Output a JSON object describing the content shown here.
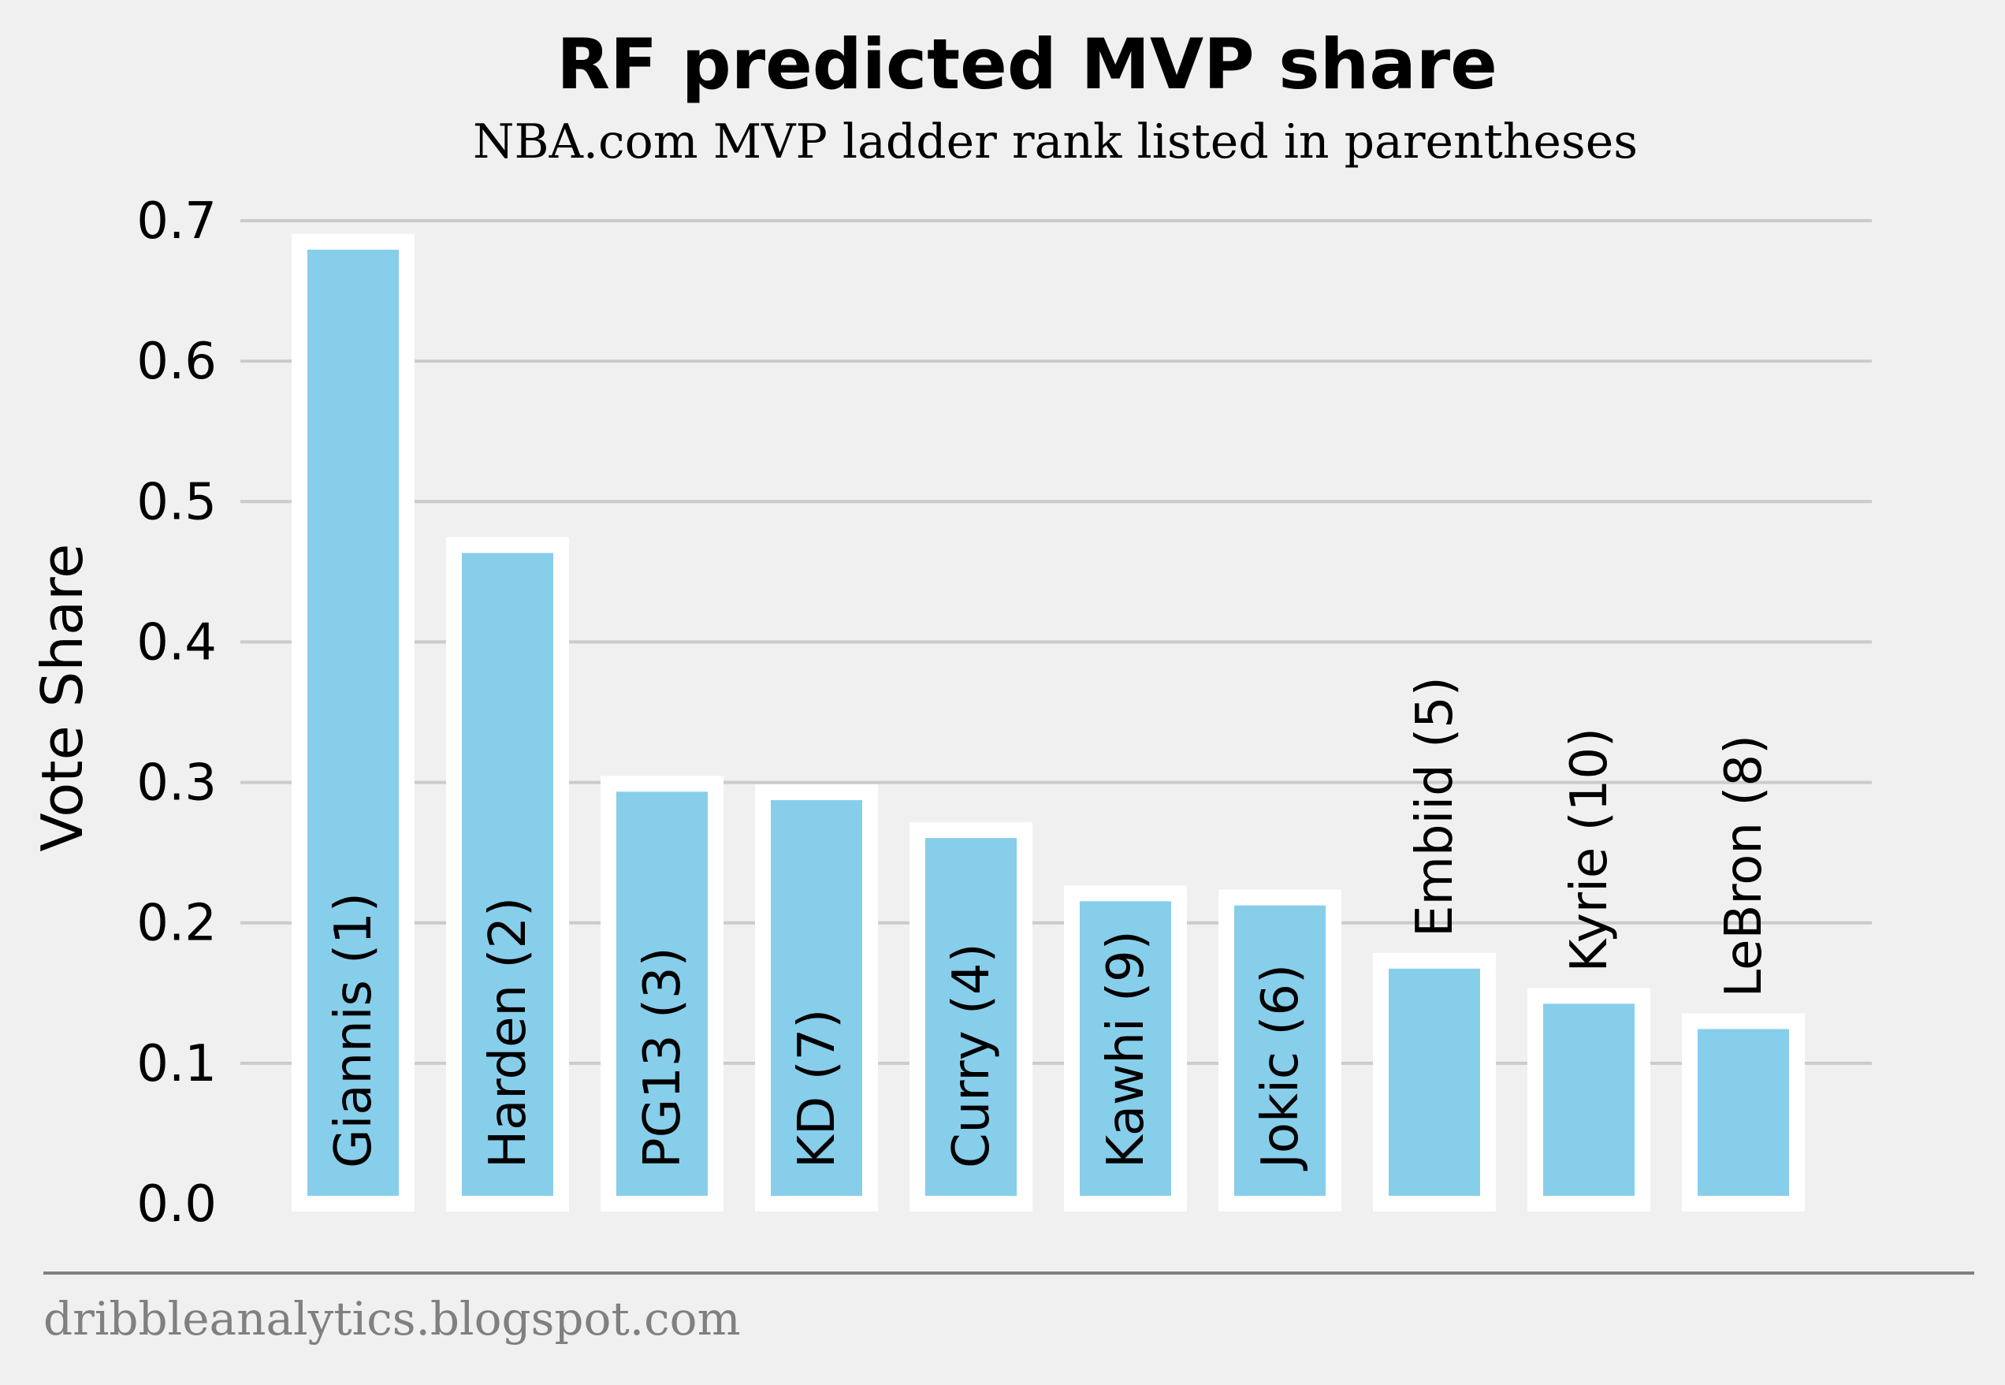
{
  "chart_data": {
    "type": "bar",
    "title": "RF predicted MVP share",
    "subtitle": "NBA.com MVP ladder rank listed in parentheses",
    "ylabel": "Vote Share",
    "xlabel": "",
    "ylim": [
      0,
      0.7
    ],
    "yticks": [
      "0.0",
      "0.1",
      "0.2",
      "0.3",
      "0.4",
      "0.5",
      "0.6",
      "0.7"
    ],
    "grid": "horizontal",
    "categories": [
      "Giannis (1)",
      "Harden (2)",
      "PG13 (3)",
      "KD (7)",
      "Curry (4)",
      "Kawhi (9)",
      "Jokic (6)",
      "Embiid (5)",
      "Kyrie (10)",
      "LeBron (8)"
    ],
    "values": [
      0.685,
      0.469,
      0.299,
      0.293,
      0.266,
      0.221,
      0.218,
      0.173,
      0.148,
      0.13
    ],
    "colors": {
      "bar": "#87ceeb",
      "bar_edge": "#ffffff",
      "background": "#f0f0f0",
      "grid": "#cbcbcb",
      "footer_text": "#808080"
    }
  },
  "footer": {
    "text": "dribbleanalytics.blogspot.com"
  }
}
